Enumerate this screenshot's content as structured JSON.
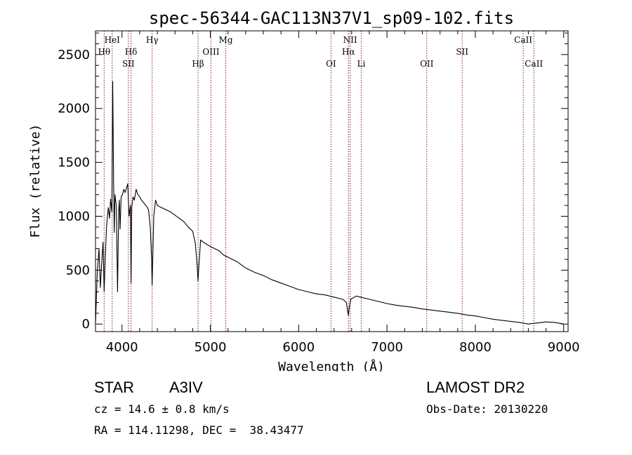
{
  "chart_data": {
    "type": "line",
    "title": "spec-56344-GAC113N37V1_sp09-102.fits",
    "xlabel": "Wavelength (Å)",
    "ylabel": "Flux (relative)",
    "xlim": [
      3700,
      9050
    ],
    "ylim": [
      -70,
      2720
    ],
    "xticks": [
      4000,
      5000,
      6000,
      7000,
      8000,
      9000
    ],
    "yticks": [
      0,
      500,
      1000,
      1500,
      2000,
      2500
    ],
    "grid": false,
    "line_color": "#000000",
    "marker_color": "#8b1a1a",
    "lines": [
      {
        "label": "Hθ",
        "wavelength": 3798,
        "row": 2
      },
      {
        "label": "HeI",
        "wavelength": 3889,
        "row": 1
      },
      {
        "label": "Hδ",
        "wavelength": 4102,
        "row": 2
      },
      {
        "label": "SII",
        "wavelength": 4072,
        "row": 3
      },
      {
        "label": "Hγ",
        "wavelength": 4341,
        "row": 1
      },
      {
        "label": "Hβ",
        "wavelength": 4861,
        "row": 3
      },
      {
        "label": "OIII",
        "wavelength": 5007,
        "row": 2
      },
      {
        "label": "Mg",
        "wavelength": 5175,
        "row": 1
      },
      {
        "label": "OI",
        "wavelength": 6366,
        "row": 3
      },
      {
        "label": "NII",
        "wavelength": 6583,
        "row": 1
      },
      {
        "label": "Hα",
        "wavelength": 6563,
        "row": 2
      },
      {
        "label": "Li",
        "wavelength": 6708,
        "row": 3
      },
      {
        "label": "OII",
        "wavelength": 7450,
        "row": 3
      },
      {
        "label": "SII",
        "wavelength": 7851,
        "row": 2
      },
      {
        "label": "CaII",
        "wavelength": 8542,
        "row": 1
      },
      {
        "label": "CaII",
        "wavelength": 8662,
        "row": 3
      }
    ],
    "series": [
      {
        "x": [
          3700,
          3720,
          3740,
          3755,
          3770,
          3785,
          3798,
          3812,
          3825,
          3835,
          3845,
          3860,
          3870,
          3885,
          3895,
          3905,
          3912,
          3920,
          3935,
          3950,
          3962,
          3970,
          3978,
          3990,
          4005,
          4020,
          4035,
          4050,
          4065,
          4080,
          4095,
          4102,
          4110,
          4125,
          4140,
          4160,
          4180,
          4200,
          4220,
          4250,
          4280,
          4300,
          4320,
          4335,
          4341,
          4348,
          4360,
          4380,
          4400,
          4450,
          4500,
          4550,
          4600,
          4650,
          4700,
          4750,
          4800,
          4830,
          4850,
          4861,
          4872,
          4890,
          4920,
          4960,
          5000,
          5050,
          5100,
          5150,
          5200,
          5300,
          5400,
          5500,
          5600,
          5700,
          5800,
          5900,
          6000,
          6100,
          6200,
          6300,
          6400,
          6500,
          6540,
          6555,
          6563,
          6572,
          6590,
          6650,
          6700,
          6800,
          6900,
          7000,
          7100,
          7200,
          7300,
          7400,
          7500,
          7600,
          7700,
          7800,
          7900,
          8000,
          8100,
          8200,
          8300,
          8400,
          8500,
          8600,
          8700,
          8800,
          8900,
          9000
        ],
        "y": [
          0,
          480,
          700,
          340,
          560,
          760,
          300,
          650,
          900,
          1000,
          1080,
          980,
          1160,
          1040,
          2250,
          1300,
          850,
          1200,
          1100,
          300,
          1050,
          1150,
          880,
          1180,
          1200,
          1250,
          1220,
          1260,
          1300,
          1000,
          1100,
          380,
          1080,
          1180,
          1150,
          1250,
          1200,
          1180,
          1150,
          1120,
          1090,
          1060,
          900,
          600,
          360,
          600,
          1000,
          1150,
          1100,
          1080,
          1060,
          1040,
          1010,
          980,
          950,
          900,
          860,
          750,
          550,
          400,
          560,
          780,
          760,
          740,
          720,
          700,
          680,
          640,
          620,
          580,
          520,
          480,
          450,
          410,
          380,
          350,
          320,
          300,
          280,
          270,
          250,
          230,
          200,
          120,
          80,
          150,
          230,
          260,
          250,
          230,
          210,
          190,
          175,
          165,
          155,
          140,
          130,
          120,
          110,
          100,
          85,
          75,
          60,
          45,
          35,
          25,
          15,
          0,
          10,
          20,
          15,
          0
        ]
      }
    ]
  },
  "info": {
    "object_class": "STAR",
    "subclass": "A3IV",
    "survey": "LAMOST DR2",
    "redshift": "cz = 14.6 ± 0.8 km/s",
    "obs_date": "Obs-Date: 20130220",
    "coords": "RA = 114.11298, DEC =  38.43477"
  }
}
